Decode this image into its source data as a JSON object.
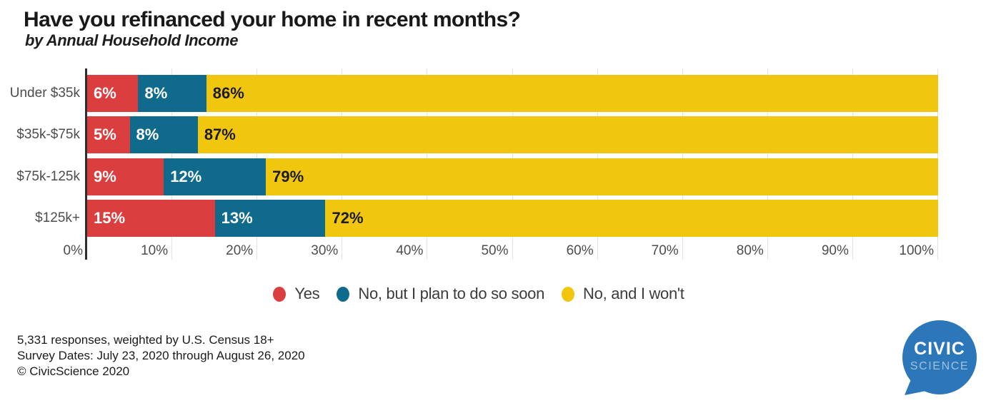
{
  "title": "Have you refinanced your home in recent months?",
  "subtitle": "by Annual Household Income",
  "colors": {
    "grid": "#e3e3e3",
    "axis": "#2e2e2e",
    "label_gray": "#4d4d4d",
    "text_dark": "#1b1b1b",
    "logo_blue": "#2c76ba"
  },
  "chart_data": {
    "type": "bar",
    "stacked": true,
    "orientation": "horizontal",
    "title": "Have you refinanced your home in recent months?",
    "subtitle": "by Annual Household Income",
    "categories": [
      "Under $35k",
      "$35k-$75k",
      "$75k-125k",
      "$125k+"
    ],
    "series": [
      {
        "name": "Yes",
        "color": "#db3e3e",
        "label_color": "#ffffff",
        "values": [
          6,
          5,
          9,
          15
        ]
      },
      {
        "name": "No, but I plan to do so soon",
        "color": "#106a8c",
        "label_color": "#ffffff",
        "values": [
          8,
          8,
          12,
          13
        ]
      },
      {
        "name": "No, and I won't",
        "color": "#f0c60f",
        "label_color": "#1b1b1b",
        "values": [
          86,
          87,
          79,
          72
        ]
      }
    ],
    "value_suffix": "%",
    "xlim": [
      0,
      100
    ],
    "x_ticks": [
      "0%",
      "10%",
      "20%",
      "30%",
      "40%",
      "50%",
      "60%",
      "70%",
      "80%",
      "90%",
      "100%"
    ],
    "grid": true,
    "legend_position": "bottom"
  },
  "footer": {
    "line1": "5,331 responses, weighted by U.S. Census 18+",
    "line2": "Survey Dates: July 23, 2020 through August 26, 2020",
    "line3": "© CivicScience 2020"
  },
  "logo": {
    "line1": "CIVIC",
    "line2": "SCIENCE"
  }
}
